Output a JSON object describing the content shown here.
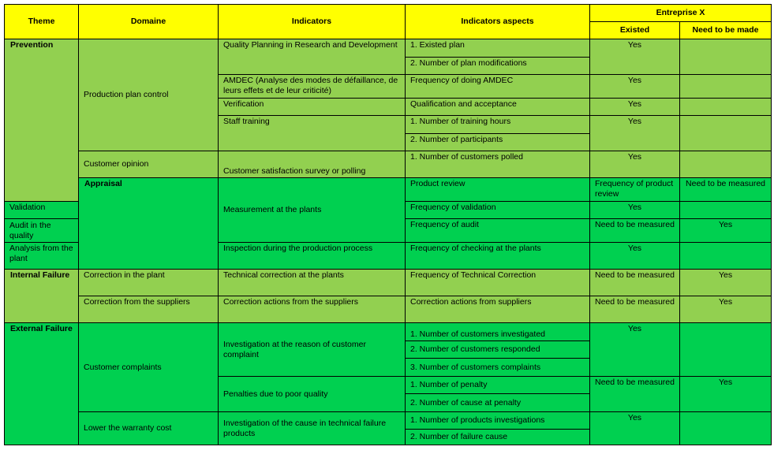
{
  "header": {
    "theme": "Theme",
    "domaine": "Domaine",
    "indicators": "Indicators",
    "aspects": "Indicators aspects",
    "entreprise": "Entreprise X",
    "existed": "Existed",
    "need": "Need to be made"
  },
  "colors": {
    "header": "#ffff00",
    "light_green": "#92d050",
    "bright_green": "#00d050"
  },
  "prevention": {
    "theme": "Prevention",
    "domain_ppc": "Production plan control",
    "ind_qp": "Quality Planning in Research and Development",
    "asp_existed_plan": "1. Existed plan",
    "asp_plan_mod": "2. Number of plan modifications",
    "ind_amdec": "AMDEC (Analyse des modes de défaillance, de leurs effets et de leur criticité)",
    "asp_amdec": "Frequency of doing AMDEC",
    "ind_verif": "Verification",
    "asp_verif": "Qualification and acceptance",
    "ind_staff": "Staff training",
    "asp_train_hours": "1. Number of training hours",
    "asp_participants": "2. Number of participants",
    "domain_co": "Customer opinion",
    "ind_survey": "Customer satisfaction survey or polling",
    "asp_polled": "1. Number of customers polled",
    "yes": "Yes"
  },
  "appraisal": {
    "theme": "Appraisal",
    "domain_map": "Measurement at the plants",
    "ind_review": "Product review",
    "asp_review": "Frequency of product  review",
    "ind_valid": "Validation",
    "asp_valid": "Frequency of validation",
    "ind_audit": "Audit in the quality",
    "asp_audit": "Frequency of audit",
    "domain_afp": "Analysis from the plant",
    "ind_inspect": "Inspection during the production process",
    "asp_inspect": "Frequency of checking at the plants",
    "yes": "Yes",
    "need_measured": "Need to be measured"
  },
  "internal": {
    "theme": "Internal Failure",
    "domain_cip": "Correction in the plant",
    "ind_tech": "Technical correction at the plants",
    "asp_tech": "Frequency of Technical Correction",
    "domain_cfs": "Correction from the suppliers",
    "ind_actions": "Correction actions from the suppliers",
    "asp_actions": "Correction actions from suppliers",
    "yes": "Yes",
    "need_measured": "Need to be measured"
  },
  "external": {
    "theme": "External Failure",
    "domain_cc": "Customer complaints",
    "ind_invest": "Investigation at the reason of customer complaint",
    "asp_investigated": "1. Number of customers investigated",
    "asp_responded": "2. Number of customers responded",
    "asp_complaints": "3. Number of customers complaints",
    "ind_penalties": "Penalties due to poor quality",
    "asp_penalty": "1. Number of penalty",
    "asp_cause_penalty": "2. Number of cause at penalty",
    "domain_lwc": "Lower the warranty cost",
    "ind_tech_fail": "Investigation of the cause in technical failure products",
    "asp_prod_invest": "1. Number of products investigations",
    "asp_failure_cause": "2. Number of failure cause",
    "yes": "Yes",
    "need_measured": "Need to be measured"
  }
}
